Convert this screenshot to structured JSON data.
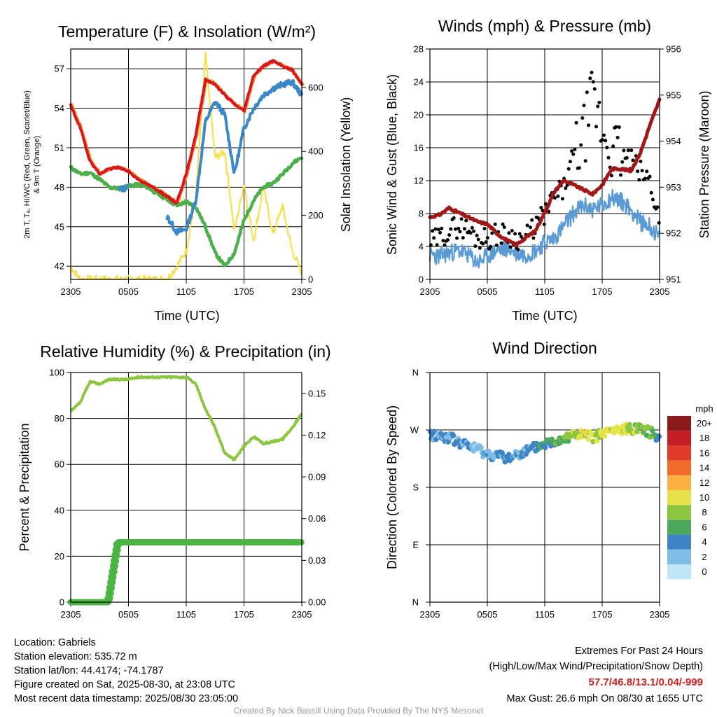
{
  "domain": "weather-station-meteogram",
  "time_ticks": [
    "2305",
    "0505",
    "1105",
    "1705",
    "2305"
  ],
  "colors": {
    "temp": "#d7191c",
    "dewpoint": "#4daf4a",
    "heatindex": "#ff7f2a",
    "temp9m": "#f59a3e",
    "wetbulb": "#3b88c8",
    "solar": "#f7e04d",
    "wind": "#5b9bd5",
    "gust": "#000000",
    "pressure": "#a01818",
    "rh": "#8cc63f",
    "precip": "#4bb543"
  },
  "panels": {
    "temperature": {
      "title": "Temperature (F) & Insolation (W/m²)",
      "xlabel": "Time (UTC)",
      "ylabel_line1": "2m T, Tₐ, HI/WC (Red, Green, Scarlet/Blue)",
      "ylabel_line2": "& 9m T (Orange)",
      "y2label": "Solar Insolation (Yellow)",
      "left_ticks": [
        "42",
        "45",
        "48",
        "51",
        "54",
        "57"
      ],
      "right_ticks": [
        "0",
        "200",
        "400",
        "600"
      ]
    },
    "winds": {
      "title": "Winds (mph) & Pressure (mb)",
      "xlabel": "Time (UTC)",
      "ylabel": "Sonic Wind & Gust (Blue, Black)",
      "y2label": "Station Pressure (Maroon)",
      "left_ticks": [
        "0",
        "4",
        "8",
        "12",
        "16",
        "20",
        "24",
        "28"
      ],
      "right_ticks": [
        "951",
        "952",
        "953",
        "954",
        "955",
        "956"
      ]
    },
    "humidity": {
      "title": "Relative Humidity (%) & Precipitation (in)",
      "ylabel": "Percent & Precipitation",
      "left_ticks": [
        "0",
        "20",
        "40",
        "60",
        "80",
        "100"
      ],
      "right_ticks": [
        "0.00",
        "0.03",
        "0.06",
        "0.09",
        "0.12",
        "0.15"
      ]
    },
    "direction": {
      "title": "Wind Direction",
      "ylabel": "Direction (Colored By Speed)",
      "dir_ticks": [
        "N",
        "E",
        "S",
        "W",
        "N"
      ],
      "legend_title": "mph",
      "legend_labels": [
        "0",
        "2",
        "4",
        "6",
        "8",
        "10",
        "12",
        "14",
        "16",
        "18",
        "20+"
      ],
      "legend_colors": [
        "#bfe6f7",
        "#7fbde6",
        "#3d84c4",
        "#4ca85a",
        "#8cc63f",
        "#e6e34a",
        "#f9b040",
        "#f06b2a",
        "#e03a2a",
        "#c21e24",
        "#8b1a1a"
      ]
    }
  },
  "footer": {
    "location": "Location: Gabriels",
    "elevation": "Station elevation: 535.72 m",
    "latlon": "Station lat/lon: 44.4174; -74.1787",
    "created": "Figure created on Sat, 2025-08-30, at 23:08 UTC",
    "recent": "Most recent data timestamp: 2025/08/30 23:05:00",
    "extremes_title": "Extremes For Past 24 Hours",
    "extremes_sub": "(High/Low/Max Wind/Precipitation/Snow Depth)",
    "extremes_values": "57.7/46.8/13.1/0.04/-999",
    "max_gust": "Max Gust: 26.6 mph On 08/30 at 1655 UTC",
    "credit": "Created By Nick Bassill Using Data Provided By The NYS Mesonet"
  },
  "chart_data": [
    {
      "type": "line",
      "title": "Temperature (F) & Insolation (W/m²)",
      "xlabel": "Time (UTC)",
      "ylabel": "2m T, Tₐ, HI/WC (Red, Green, Scarlet/Blue) & 9m T (Orange)",
      "y2label": "Solar Insolation (Yellow)",
      "x_range_hours": [
        0,
        24
      ],
      "x": [
        0,
        1,
        2,
        3,
        4,
        5,
        6,
        7,
        8,
        9,
        10,
        11,
        12,
        13,
        14,
        15,
        16,
        17,
        18,
        19,
        20,
        21,
        22,
        23,
        24
      ],
      "ylim": [
        41,
        58.5
      ],
      "y2lim": [
        0,
        720
      ],
      "series": [
        {
          "name": "2m T",
          "axis": "left",
          "values": [
            54.2,
            52.5,
            50.0,
            49.0,
            49.4,
            49.5,
            49.2,
            48.6,
            48.2,
            47.8,
            47.3,
            46.8,
            49.0,
            52.0,
            56.2,
            55.8,
            55.0,
            54.3,
            53.8,
            56.5,
            57.2,
            57.6,
            57.2,
            56.9,
            55.8
          ]
        },
        {
          "name": "Dew Point",
          "axis": "left",
          "values": [
            49.5,
            49.0,
            49.1,
            48.6,
            48.0,
            47.9,
            48.1,
            48.2,
            48.0,
            47.5,
            47.1,
            46.6,
            46.9,
            46.5,
            45.0,
            43.0,
            42.0,
            43.0,
            45.5,
            47.0,
            48.0,
            48.3,
            49.0,
            49.8,
            50.3
          ]
        },
        {
          "name": "Wet Bulb / Wind Chill",
          "axis": "left",
          "values": [
            null,
            null,
            null,
            null,
            null,
            47.8,
            48.0,
            null,
            47.5,
            null,
            45.8,
            44.6,
            44.8,
            47.0,
            53.0,
            54.5,
            53.5,
            49.0,
            52.5,
            54.0,
            55.0,
            55.5,
            55.8,
            56.0,
            55.0
          ]
        },
        {
          "name": "Solar Insolation",
          "axis": "right",
          "values": [
            40,
            0,
            0,
            0,
            0,
            0,
            0,
            0,
            0,
            0,
            0,
            40,
            90,
            260,
            700,
            380,
            400,
            150,
            300,
            120,
            290,
            140,
            230,
            90,
            20
          ]
        }
      ]
    },
    {
      "type": "line",
      "title": "Winds (mph) & Pressure (mb)",
      "xlabel": "Time (UTC)",
      "ylabel": "Sonic Wind & Gust (Blue, Black)",
      "y2label": "Station Pressure (Maroon)",
      "x": [
        0,
        1,
        2,
        3,
        4,
        5,
        6,
        7,
        8,
        9,
        10,
        11,
        12,
        13,
        14,
        15,
        16,
        17,
        18,
        19,
        20,
        21,
        22,
        23,
        24
      ],
      "ylim": [
        0,
        28
      ],
      "y2lim": [
        951,
        956
      ],
      "series": [
        {
          "name": "Sonic Wind",
          "axis": "left",
          "values": [
            3.0,
            2.8,
            3.2,
            3.5,
            3.0,
            2.0,
            2.8,
            3.5,
            3.8,
            3.2,
            3.0,
            3.5,
            4.5,
            5.0,
            6.5,
            8.0,
            9.0,
            8.5,
            9.0,
            10.0,
            9.5,
            8.5,
            7.0,
            6.5,
            5.0
          ]
        },
        {
          "name": "Gust",
          "axis": "left",
          "values": [
            4.5,
            5.0,
            6.0,
            6.5,
            6.0,
            5.0,
            5.0,
            5.5,
            5.5,
            5.0,
            5.0,
            6.5,
            8.0,
            10.0,
            11.0,
            15.0,
            17.0,
            22.0,
            18.0,
            16.0,
            15.0,
            14.5,
            13.0,
            12.0,
            7.0
          ]
        },
        {
          "name": "Station Pressure",
          "axis": "right",
          "values": [
            952.35,
            952.4,
            952.55,
            952.45,
            952.35,
            952.25,
            952.2,
            952.0,
            951.85,
            951.75,
            951.9,
            952.05,
            952.45,
            952.9,
            953.15,
            953.05,
            952.95,
            952.85,
            953.05,
            953.4,
            953.4,
            953.35,
            953.75,
            954.35,
            954.9
          ]
        }
      ]
    },
    {
      "type": "line",
      "title": "Relative Humidity (%) & Precipitation (in)",
      "ylabel": "Percent & Precipitation",
      "x": [
        0,
        1,
        2,
        3,
        4,
        5,
        6,
        7,
        8,
        9,
        10,
        11,
        12,
        13,
        14,
        15,
        16,
        17,
        18,
        19,
        20,
        21,
        22,
        23,
        24
      ],
      "ylim": [
        0,
        100
      ],
      "y2lim": [
        0,
        0.165
      ],
      "series": [
        {
          "name": "Relative Humidity",
          "axis": "left",
          "values": [
            83,
            87,
            96,
            95,
            97,
            97,
            97,
            98,
            98,
            98,
            98,
            98,
            98,
            95,
            84,
            76,
            65,
            62,
            68,
            72,
            69,
            70,
            71,
            76,
            82
          ]
        },
        {
          "name": "Precipitation",
          "axis": "right",
          "values": [
            0.0,
            0.0,
            0.0,
            0.0,
            0.0,
            0.043,
            0.043,
            0.043,
            0.043,
            0.043,
            0.043,
            0.043,
            0.043,
            0.043,
            0.043,
            0.043,
            0.043,
            0.043,
            0.043,
            0.043,
            0.043,
            0.043,
            0.043,
            0.043,
            0.043
          ]
        }
      ]
    },
    {
      "type": "scatter",
      "title": "Wind Direction",
      "ylabel": "Direction (Colored By Speed)",
      "x": [
        0,
        1,
        2,
        3,
        4,
        5,
        6,
        7,
        8,
        9,
        10,
        11,
        12,
        13,
        14,
        15,
        16,
        17,
        18,
        19,
        20,
        21,
        22,
        23,
        24
      ],
      "ylim_deg": [
        0,
        360
      ],
      "series": [
        {
          "name": "Direction (deg)",
          "values": [
            262,
            260,
            258,
            250,
            245,
            240,
            232,
            230,
            225,
            232,
            236,
            242,
            248,
            252,
            258,
            263,
            262,
            258,
            264,
            268,
            270,
            272,
            275,
            266,
            260
          ]
        },
        {
          "name": "Speed (mph)",
          "values": [
            3,
            3,
            3,
            4,
            3,
            2,
            3,
            3,
            4,
            3,
            3,
            4,
            5,
            6,
            7,
            8,
            10,
            9,
            9,
            10,
            9,
            8,
            7,
            7,
            5
          ]
        }
      ]
    }
  ]
}
